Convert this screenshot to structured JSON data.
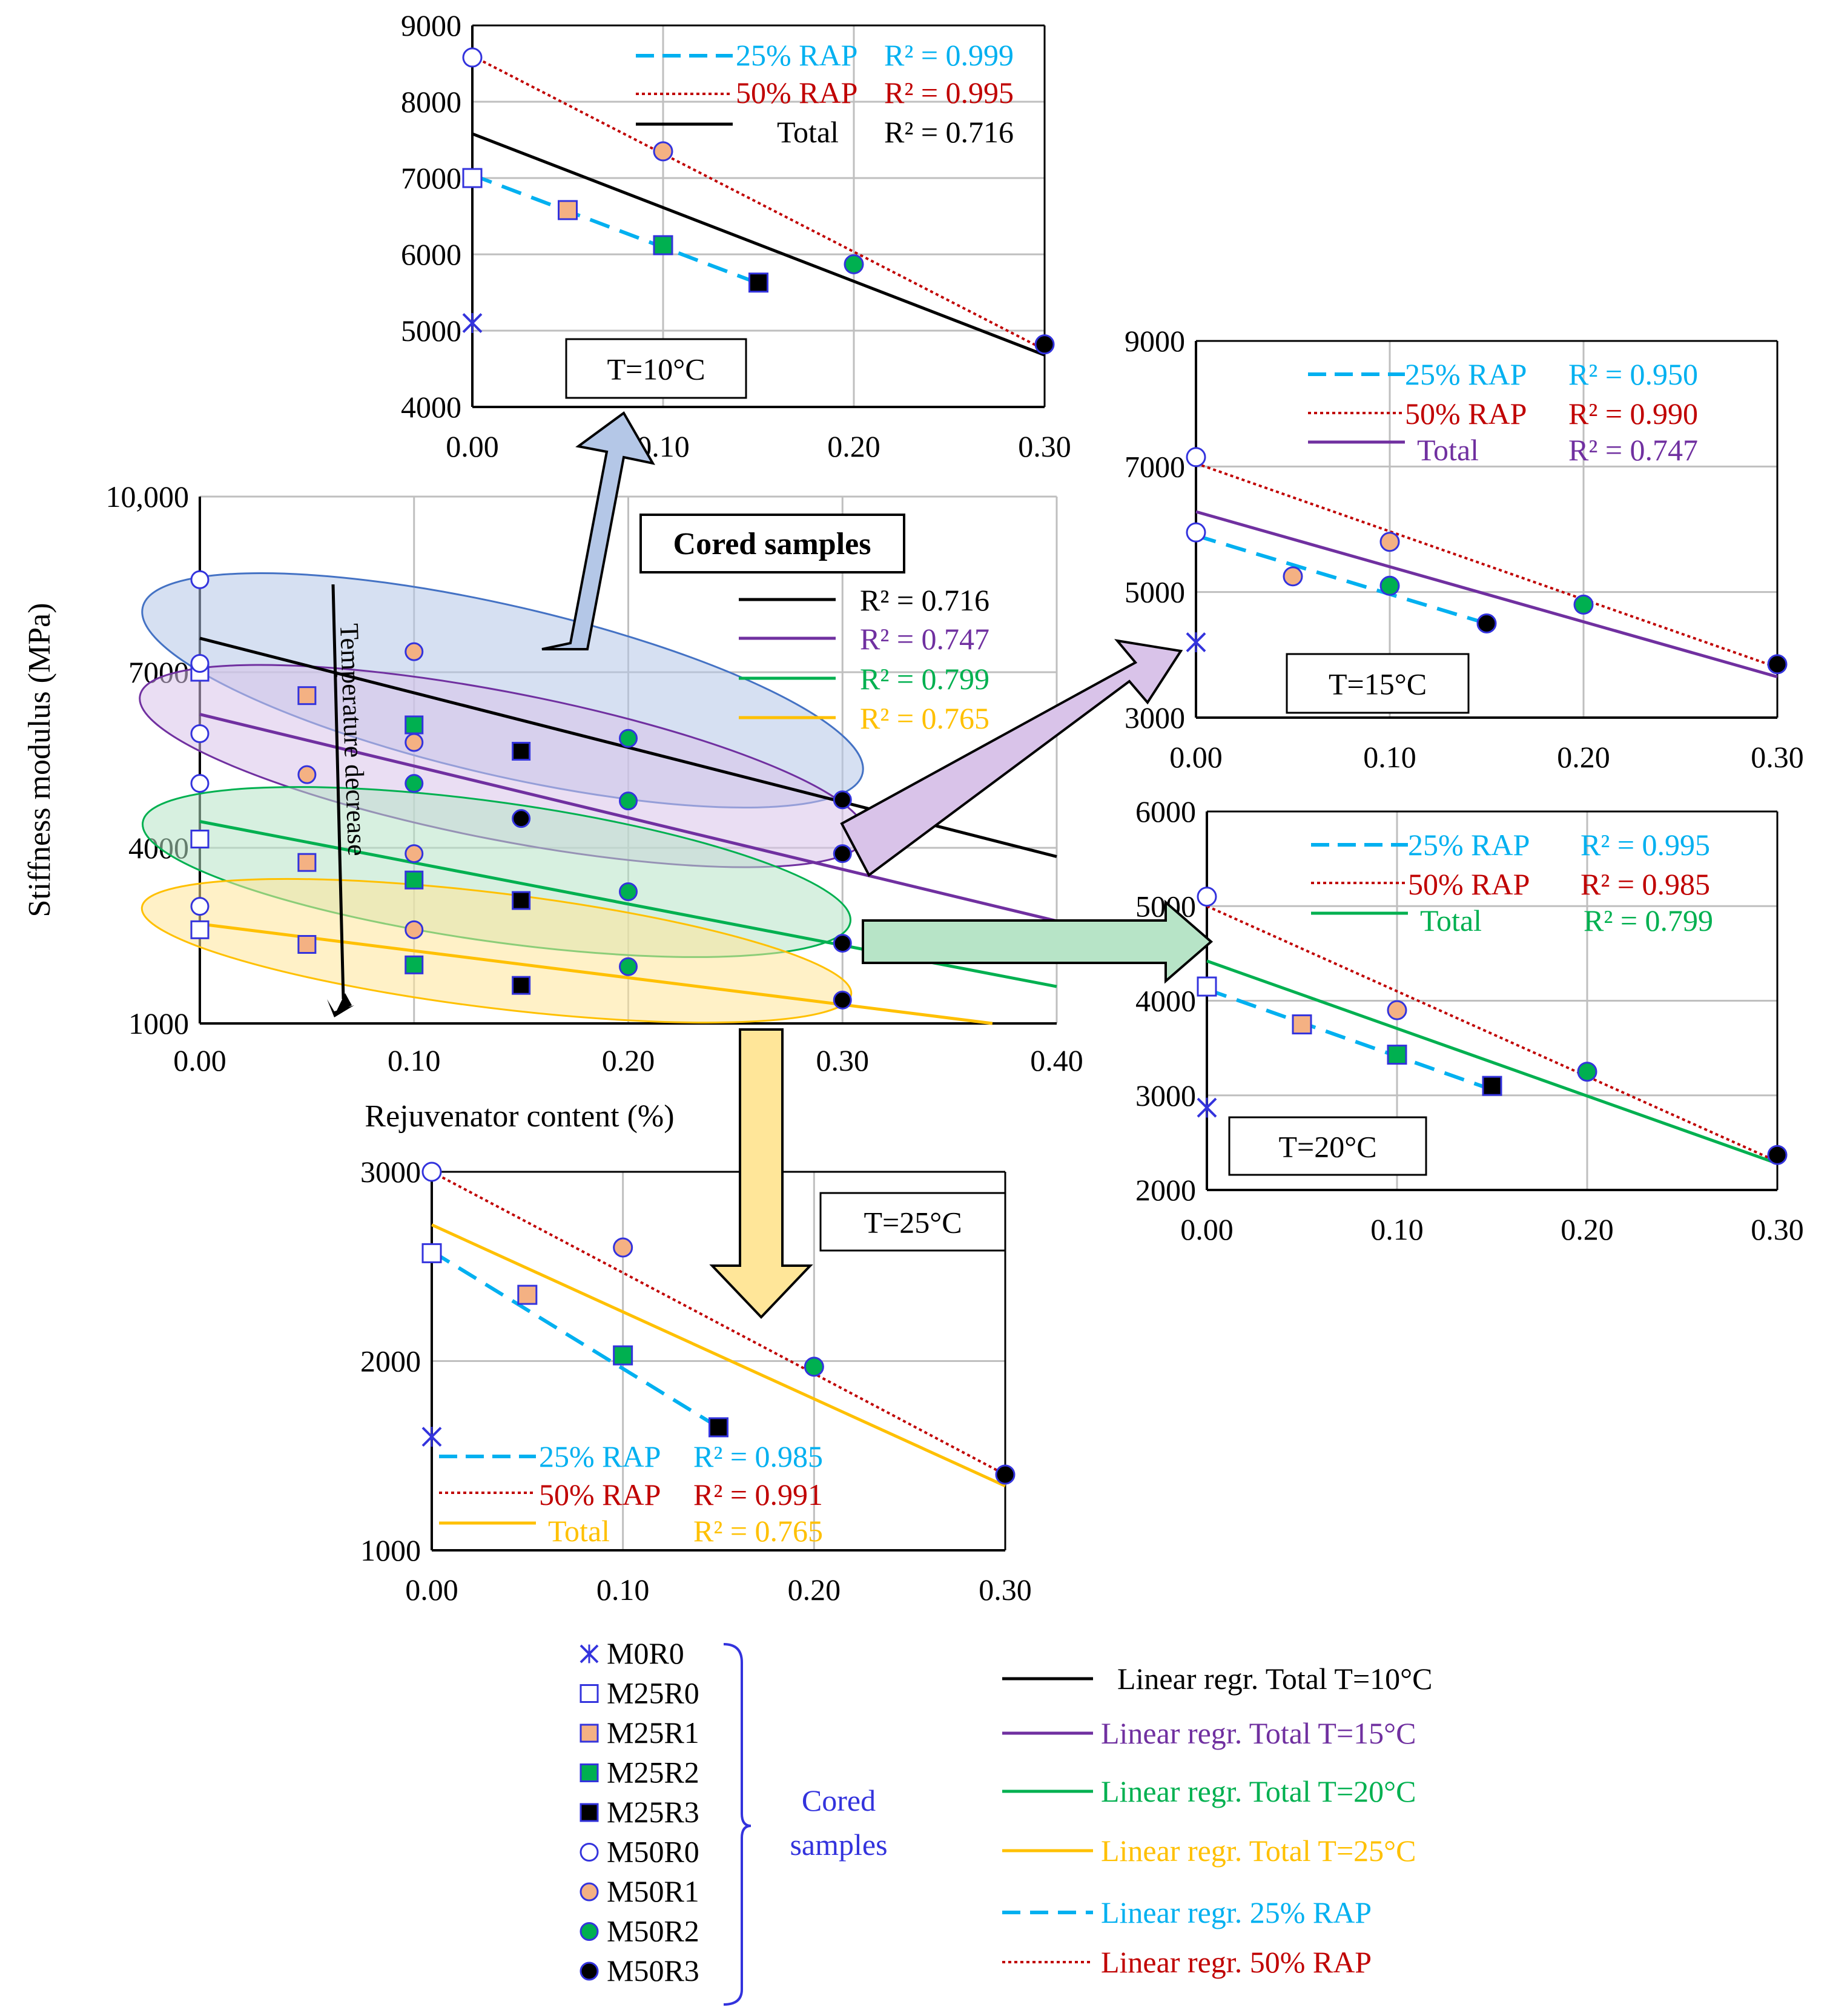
{
  "colors": {
    "total10": "#000000",
    "total15": "#7030A0",
    "total20": "#00B050",
    "total25": "#FFC000",
    "rap25": "#00B0F0",
    "rap50": "#C00000",
    "marker_blue": "#3333DD",
    "m1_fill": "#F4B183",
    "m2_fill": "#00B050",
    "m3_fill": "#000000",
    "ellipse10": "#B4C7E7",
    "ellipse15": "#D9C3E9",
    "ellipse20": "#B7E4C7",
    "ellipse25": "#FFE699",
    "ellipse10_stroke": "#4472C4",
    "ellipse15_stroke": "#7030A0",
    "ellipse20_stroke": "#00B050",
    "ellipse25_stroke": "#FFC000"
  },
  "chart_data": [
    {
      "id": "main",
      "type": "scatter",
      "title": "Cored samples",
      "xlabel": "Rejuvenator content (%)",
      "ylabel": "Stiffness modulus (MPa)",
      "xlim": [
        0,
        0.4
      ],
      "ylim": [
        1000,
        10000
      ],
      "xticks": [
        "0.00",
        "0.10",
        "0.20",
        "0.30",
        "0.40"
      ],
      "yticks": [
        {
          "v": 1000,
          "label": "1000"
        },
        {
          "v": 4000,
          "label": "4000"
        },
        {
          "v": 7000,
          "label": "7000"
        },
        {
          "v": 10000,
          "label": "10,000"
        }
      ],
      "annotation": "Temperature decrease",
      "series": [
        {
          "name": "M0R0",
          "points": []
        },
        {
          "name": "M25R0",
          "points": [
            [
              0,
              7000
            ],
            [
              0,
              4150
            ],
            [
              0,
              2600
            ]
          ]
        },
        {
          "name": "M25R1",
          "points": [
            [
              0.05,
              6600
            ],
            [
              0.05,
              3750
            ],
            [
              0.05,
              2350
            ]
          ]
        },
        {
          "name": "M25R2",
          "points": [
            [
              0.1,
              6100
            ],
            [
              0.1,
              3450
            ],
            [
              0.1,
              2000
            ]
          ]
        },
        {
          "name": "M25R3",
          "points": [
            [
              0.15,
              5650
            ],
            [
              0.15,
              3100
            ],
            [
              0.15,
              1650
            ]
          ]
        },
        {
          "name": "M50R0",
          "points": [
            [
              0,
              8580
            ],
            [
              0,
              7150
            ],
            [
              0,
              5950
            ],
            [
              0,
              5100
            ],
            [
              0,
              3000
            ]
          ]
        },
        {
          "name": "M50R1",
          "points": [
            [
              0.05,
              5250
            ],
            [
              0.1,
              7350
            ],
            [
              0.1,
              5800
            ],
            [
              0.1,
              3900
            ],
            [
              0.1,
              2600
            ]
          ]
        },
        {
          "name": "M50R2",
          "points": [
            [
              0.1,
              5100
            ],
            [
              0.2,
              5870
            ],
            [
              0.2,
              4800
            ],
            [
              0.2,
              3250
            ],
            [
              0.2,
              1970
            ]
          ]
        },
        {
          "name": "M50R3",
          "points": [
            [
              0.15,
              4500
            ],
            [
              0.3,
              4820
            ],
            [
              0.3,
              3900
            ],
            [
              0.3,
              2370
            ],
            [
              0.3,
              1400
            ]
          ]
        }
      ],
      "regressions": [
        {
          "name": "Total T=10°C",
          "r2": "R² = 0.716",
          "x": [
            0,
            0.4
          ],
          "y": [
            7580,
            3850
          ]
        },
        {
          "name": "Total T=15°C",
          "r2": "R² = 0.747",
          "x": [
            0,
            0.4
          ],
          "y": [
            6280,
            2750
          ]
        },
        {
          "name": "Total T=20°C",
          "r2": "R² = 0.799",
          "x": [
            0,
            0.4
          ],
          "y": [
            4450,
            1630
          ]
        },
        {
          "name": "Total T=25°C",
          "r2": "R² = 0.765",
          "x": [
            0,
            0.37
          ],
          "y": [
            2700,
            1000
          ]
        }
      ]
    },
    {
      "id": "t10",
      "type": "scatter",
      "title": "T=10°C",
      "xlim": [
        0,
        0.3
      ],
      "ylim": [
        4000,
        9000
      ],
      "xticks": [
        "0.00",
        "0.10",
        "0.20",
        "0.30"
      ],
      "yticks": [
        {
          "v": 4000,
          "label": "4000"
        },
        {
          "v": 5000,
          "label": "5000"
        },
        {
          "v": 6000,
          "label": "6000"
        },
        {
          "v": 7000,
          "label": "7000"
        },
        {
          "v": 8000,
          "label": "8000"
        },
        {
          "v": 9000,
          "label": "9000"
        }
      ],
      "series": [
        {
          "name": "M0R0",
          "points": [
            [
              0,
              5100
            ]
          ]
        },
        {
          "name": "M25R0",
          "points": [
            [
              0,
              7000
            ]
          ]
        },
        {
          "name": "M25R1",
          "points": [
            [
              0.05,
              6580
            ]
          ]
        },
        {
          "name": "M25R2",
          "points": [
            [
              0.1,
              6120
            ]
          ]
        },
        {
          "name": "M25R3",
          "points": [
            [
              0.15,
              5630
            ]
          ]
        },
        {
          "name": "M50R0",
          "points": [
            [
              0,
              8580
            ]
          ]
        },
        {
          "name": "M50R1",
          "points": [
            [
              0.1,
              7350
            ]
          ]
        },
        {
          "name": "M50R2",
          "points": [
            [
              0.2,
              5870
            ]
          ]
        },
        {
          "name": "M50R3",
          "points": [
            [
              0.3,
              4820
            ]
          ]
        }
      ],
      "legend": [
        {
          "label": "25% RAP",
          "r2": "R² = 0.999"
        },
        {
          "label": "50% RAP",
          "r2": "R² = 0.995"
        },
        {
          "label": "Total",
          "r2": "R² = 0.716"
        }
      ],
      "regressions": [
        {
          "name": "25% RAP",
          "x": [
            0,
            0.15
          ],
          "y": [
            7040,
            5620
          ]
        },
        {
          "name": "50% RAP",
          "x": [
            0,
            0.3
          ],
          "y": [
            8600,
            4750
          ]
        },
        {
          "name": "Total",
          "x": [
            0,
            0.3
          ],
          "y": [
            7580,
            4680
          ]
        }
      ]
    },
    {
      "id": "t15",
      "type": "scatter",
      "title": "T=15°C",
      "xlim": [
        0,
        0.3
      ],
      "ylim": [
        3000,
        9000
      ],
      "xticks": [
        "0.00",
        "0.10",
        "0.20",
        "0.30"
      ],
      "yticks": [
        {
          "v": 3000,
          "label": "3000"
        },
        {
          "v": 5000,
          "label": "5000"
        },
        {
          "v": 7000,
          "label": "7000"
        },
        {
          "v": 9000,
          "label": "9000"
        }
      ],
      "series": [
        {
          "name": "M0R0",
          "points": [
            [
              0,
              4200
            ]
          ]
        },
        {
          "name": "M25R0",
          "points": []
        },
        {
          "name": "M25R1",
          "points": []
        },
        {
          "name": "M25R2",
          "points": []
        },
        {
          "name": "M25R3",
          "points": []
        },
        {
          "name": "M50R0",
          "points": [
            [
              0,
              7150
            ],
            [
              0,
              5950
            ]
          ]
        },
        {
          "name": "M50R1",
          "points": [
            [
              0.05,
              5250
            ],
            [
              0.1,
              5800
            ]
          ]
        },
        {
          "name": "M50R2",
          "points": [
            [
              0.1,
              5100
            ],
            [
              0.2,
              4800
            ]
          ]
        },
        {
          "name": "M50R3",
          "points": [
            [
              0.15,
              4500
            ],
            [
              0.3,
              3850
            ]
          ]
        }
      ],
      "legend": [
        {
          "label": "25% RAP",
          "r2": "R² = 0.950"
        },
        {
          "label": "50% RAP",
          "r2": "R² = 0.990"
        },
        {
          "label": "Total",
          "r2": "R² = 0.747"
        }
      ],
      "regressions": [
        {
          "name": "25% RAP",
          "x": [
            0,
            0.15
          ],
          "y": [
            5900,
            4500
          ]
        },
        {
          "name": "50% RAP",
          "x": [
            0,
            0.3
          ],
          "y": [
            7050,
            3800
          ]
        },
        {
          "name": "Total",
          "x": [
            0,
            0.3
          ],
          "y": [
            6280,
            3650
          ]
        }
      ]
    },
    {
      "id": "t20",
      "type": "scatter",
      "title": "T=20°C",
      "xlim": [
        0,
        0.3
      ],
      "ylim": [
        2000,
        6000
      ],
      "xticks": [
        "0.00",
        "0.10",
        "0.20",
        "0.30"
      ],
      "yticks": [
        {
          "v": 2000,
          "label": "2000"
        },
        {
          "v": 3000,
          "label": "3000"
        },
        {
          "v": 4000,
          "label": "4000"
        },
        {
          "v": 5000,
          "label": "5000"
        },
        {
          "v": 6000,
          "label": "6000"
        }
      ],
      "series": [
        {
          "name": "M0R0",
          "points": [
            [
              0,
              2870
            ]
          ]
        },
        {
          "name": "M25R0",
          "points": [
            [
              0,
              4150
            ]
          ]
        },
        {
          "name": "M25R1",
          "points": [
            [
              0.05,
              3750
            ]
          ]
        },
        {
          "name": "M25R2",
          "points": [
            [
              0.1,
              3430
            ]
          ]
        },
        {
          "name": "M25R3",
          "points": [
            [
              0.15,
              3100
            ]
          ]
        },
        {
          "name": "M50R0",
          "points": [
            [
              0,
              5100
            ]
          ]
        },
        {
          "name": "M50R1",
          "points": [
            [
              0.1,
              3900
            ]
          ]
        },
        {
          "name": "M50R2",
          "points": [
            [
              0.2,
              3250
            ]
          ]
        },
        {
          "name": "M50R3",
          "points": [
            [
              0.3,
              2370
            ]
          ]
        }
      ],
      "legend": [
        {
          "label": "25% RAP",
          "r2": "R² = 0.995"
        },
        {
          "label": "50% RAP",
          "r2": "R² = 0.985"
        },
        {
          "label": "Total",
          "r2": "R² = 0.799"
        }
      ],
      "regressions": [
        {
          "name": "25% RAP",
          "x": [
            0,
            0.15
          ],
          "y": [
            4120,
            3060
          ]
        },
        {
          "name": "50% RAP",
          "x": [
            0,
            0.3
          ],
          "y": [
            5000,
            2300
          ]
        },
        {
          "name": "Total",
          "x": [
            0,
            0.3
          ],
          "y": [
            4420,
            2280
          ]
        }
      ]
    },
    {
      "id": "t25",
      "type": "scatter",
      "title": "T=25°C",
      "xlim": [
        0,
        0.3
      ],
      "ylim": [
        1000,
        3000
      ],
      "xticks": [
        "0.00",
        "0.10",
        "0.20",
        "0.30"
      ],
      "yticks": [
        {
          "v": 1000,
          "label": "1000"
        },
        {
          "v": 2000,
          "label": "2000"
        },
        {
          "v": 3000,
          "label": "3000"
        }
      ],
      "series": [
        {
          "name": "M0R0",
          "points": [
            [
              0,
              1600
            ]
          ]
        },
        {
          "name": "M25R0",
          "points": [
            [
              0,
              2570
            ]
          ]
        },
        {
          "name": "M25R1",
          "points": [
            [
              0.05,
              2350
            ]
          ]
        },
        {
          "name": "M25R2",
          "points": [
            [
              0.1,
              2030
            ]
          ]
        },
        {
          "name": "M25R3",
          "points": [
            [
              0.15,
              1650
            ]
          ]
        },
        {
          "name": "M50R0",
          "points": [
            [
              0,
              3000
            ]
          ]
        },
        {
          "name": "M50R1",
          "points": [
            [
              0.1,
              2600
            ]
          ]
        },
        {
          "name": "M50R2",
          "points": [
            [
              0.2,
              1970
            ]
          ]
        },
        {
          "name": "M50R3",
          "points": [
            [
              0.3,
              1400
            ]
          ]
        }
      ],
      "legend": [
        {
          "label": "25% RAP",
          "r2": "R² = 0.985"
        },
        {
          "label": "50% RAP",
          "r2": "R² = 0.991"
        },
        {
          "label": "Total",
          "r2": "R² = 0.765"
        }
      ],
      "regressions": [
        {
          "name": "25% RAP",
          "x": [
            0,
            0.15
          ],
          "y": [
            2580,
            1650
          ]
        },
        {
          "name": "50% RAP",
          "x": [
            0,
            0.3
          ],
          "y": [
            3000,
            1400
          ]
        },
        {
          "name": "Total",
          "x": [
            0,
            0.3
          ],
          "y": [
            2720,
            1340
          ]
        }
      ]
    }
  ],
  "marker_legend": {
    "items": [
      "M0R0",
      "M25R0",
      "M25R1",
      "M25R2",
      "M25R3",
      "M50R0",
      "M50R1",
      "M50R2",
      "M50R3"
    ],
    "group_label_line1": "Cored",
    "group_label_line2": "samples"
  },
  "line_legend": [
    {
      "label": "Linear regr.  Total T=10°C",
      "key": "total10"
    },
    {
      "label": "Linear regr.  Total T=15°C",
      "key": "total15"
    },
    {
      "label": "Linear regr.  Total T=20°C",
      "key": "total20"
    },
    {
      "label": "Linear regr.  Total T=25°C",
      "key": "total25"
    },
    {
      "label": "Linear regr.  25% RAP",
      "key": "rap25"
    },
    {
      "label": "Linear regr.  50% RAP",
      "key": "rap50"
    }
  ]
}
